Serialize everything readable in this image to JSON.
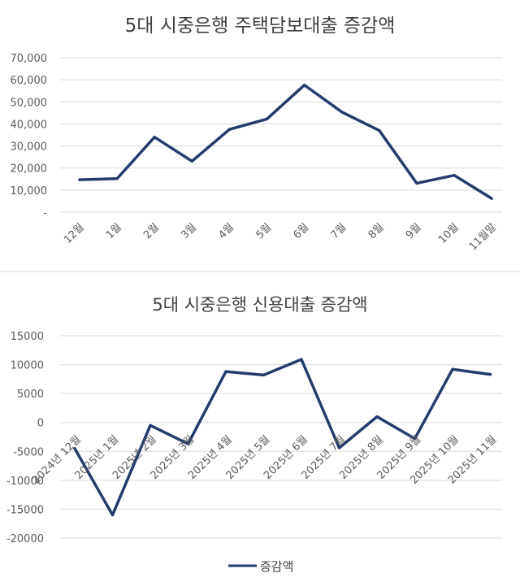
{
  "chart_data": [
    {
      "type": "line",
      "title": "5대 시중은행 주택담보대출 증감액",
      "xlabel": "",
      "ylabel": "",
      "categories": [
        "12월",
        "1월",
        "2월",
        "3월",
        "4월",
        "5월",
        "6월",
        "7월",
        "8월",
        "9월",
        "10월",
        "11월말"
      ],
      "series": [
        {
          "values": [
            14700,
            15200,
            34000,
            23100,
            37500,
            42200,
            57600,
            45400,
            37000,
            13100,
            16700,
            6200
          ]
        }
      ],
      "ylim": [
        0,
        70000
      ],
      "yticks": [
        0,
        10000,
        20000,
        30000,
        40000,
        50000,
        60000,
        70000
      ],
      "ytick_labels": [
        "-",
        "10,000",
        "20,000",
        "30,000",
        "40,000",
        "50,000",
        "60,000",
        "70,000"
      ],
      "grid": true,
      "line_color": "#243C6C"
    },
    {
      "type": "line",
      "title": "5대 시중은행 신용대출 증감액",
      "xlabel": "",
      "ylabel": "",
      "categories": [
        "2024년 12월",
        "2025년 1월",
        "2025년 2월",
        "2025년 3월",
        "2025년 4월",
        "2025년 5월",
        "2025년 6월",
        "2025년 7월",
        "2025년 8월",
        "2025년 9월",
        "2025년 10월",
        "2025년 11월"
      ],
      "series": [
        {
          "name": "증감액",
          "values": [
            -4500,
            -16000,
            -500,
            -3700,
            8800,
            8200,
            10900,
            -4400,
            1000,
            -2800,
            9200,
            8300
          ]
        }
      ],
      "ylim": [
        -20000,
        15000
      ],
      "yticks": [
        -20000,
        -15000,
        -10000,
        -5000,
        0,
        5000,
        10000,
        15000
      ],
      "ytick_labels": [
        "-20000",
        "-15000",
        "-10000",
        "-5000",
        "0",
        "5000",
        "10000",
        "15000"
      ],
      "grid": true,
      "legend": "bottom",
      "line_color": "#243C6C"
    }
  ]
}
